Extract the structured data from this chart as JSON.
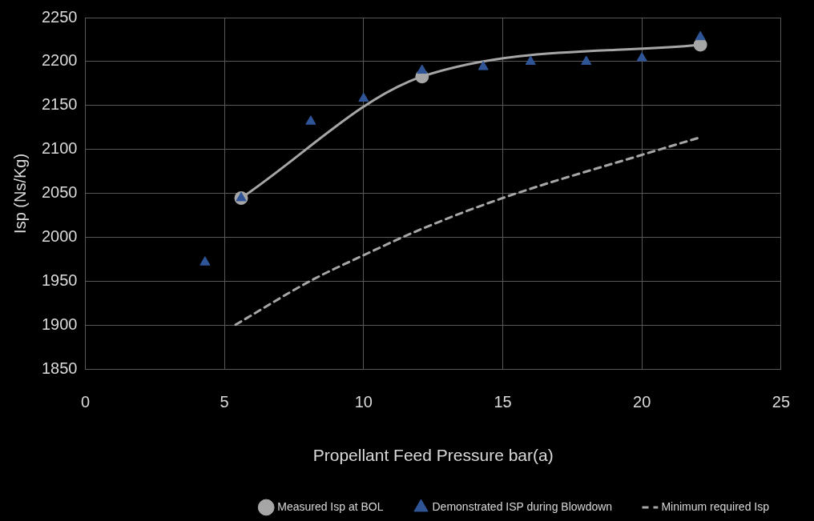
{
  "chart_data": {
    "type": "line",
    "xlabel": "Propellant Feed Pressure bar(a)",
    "ylabel": "Isp (Ns/Kg)",
    "xlim": [
      0,
      25
    ],
    "xticks": [
      0,
      5,
      10,
      15,
      20,
      25
    ],
    "ylim": [
      1850,
      2250
    ],
    "yticks": [
      1850,
      1900,
      1950,
      2000,
      2050,
      2100,
      2150,
      2200,
      2250
    ],
    "grid": true,
    "legend": "bottom",
    "series": [
      {
        "name": "Measured Isp at BOL",
        "color": "#a6a6a6",
        "marker": "circle",
        "line_style": "solid",
        "x": [
          5.6,
          12.1,
          22.1
        ],
        "values": [
          2045,
          2183,
          2219
        ]
      },
      {
        "name": "Demonstrated ISP during Blowdown",
        "type": "scatter",
        "color": "#2f5597",
        "marker": "triangle",
        "x": [
          4.3,
          5.6,
          8.1,
          10,
          12.1,
          14.3,
          16,
          18,
          20,
          22.1
        ],
        "values": [
          1972,
          2045,
          2132,
          2158,
          2190,
          2194,
          2200,
          2200,
          2204,
          2228
        ]
      },
      {
        "name": "Minimum required Isp",
        "color": "#a6a6a6",
        "marker": "none",
        "line_style": "dashed",
        "x": [
          5.4,
          8.1,
          10,
          12.1,
          15,
          20,
          22
        ],
        "values": [
          1901,
          1951,
          1980,
          2010,
          2045,
          2094,
          2113
        ]
      }
    ]
  }
}
